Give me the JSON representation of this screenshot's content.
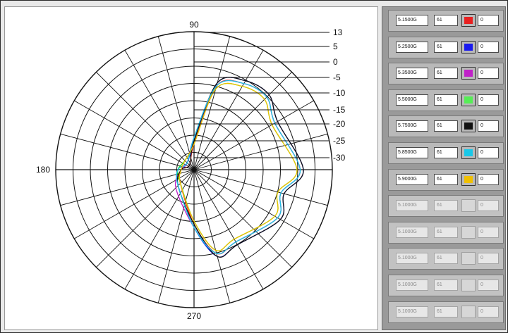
{
  "polar_plot": {
    "angle_labels": {
      "top": "90",
      "left": "180",
      "bottom": "270"
    },
    "db_labels": [
      "13",
      "5",
      "0",
      "-5",
      "-10",
      "-15",
      "-20",
      "-25",
      "-30"
    ],
    "colors": {
      "grid": "#111111"
    }
  },
  "chart_data": {
    "type": "polar",
    "angle_ticks": [
      "90",
      "180",
      "270"
    ],
    "radial_ticks": [
      "13",
      "5",
      "0",
      "-5",
      "-10",
      "-15",
      "-20",
      "-25",
      "-30"
    ],
    "series": [
      {
        "color": "#e82020",
        "values": {
          "0": 3,
          "30": -1,
          "45": 2,
          "60": 1,
          "75": -3,
          "90": -22,
          "135": -28,
          "180": -26,
          "225": -24,
          "270": -13,
          "285": -3,
          "300": -4,
          "330": 0,
          "345": -2
        }
      },
      {
        "color": "#1a1aee",
        "values": {
          "0": 4,
          "30": 0,
          "45": 3,
          "60": 2,
          "75": -2,
          "90": -21,
          "135": -27,
          "180": -25,
          "225": -23,
          "270": -12,
          "285": -2,
          "300": -3,
          "330": 1,
          "345": -1
        }
      },
      {
        "color": "#c020c8",
        "values": {
          "0": 3,
          "30": -1,
          "45": 2,
          "60": 1,
          "75": -3,
          "90": -20,
          "135": -27,
          "180": -26,
          "225": -22,
          "270": -12,
          "285": -3,
          "300": -4,
          "330": 0,
          "345": -2
        }
      },
      {
        "color": "#22dd22",
        "values": {
          "0": 2,
          "30": -2,
          "45": 1,
          "60": 0,
          "75": -4,
          "90": -22,
          "135": -26,
          "180": -25,
          "225": -24,
          "270": -14,
          "285": -4,
          "300": -5,
          "330": -1,
          "345": -3
        }
      },
      {
        "color": "#111111",
        "values": {
          "0": 4,
          "30": 0,
          "45": 3,
          "60": 2,
          "75": -2,
          "90": -21,
          "135": -28,
          "180": -26,
          "225": -23,
          "270": -13,
          "285": -2,
          "300": -3,
          "330": 1,
          "345": -1
        }
      },
      {
        "color": "#18c8e8",
        "values": {
          "0": 3,
          "30": -1,
          "45": 2,
          "60": 1,
          "75": -3,
          "90": -20,
          "135": -27,
          "180": -25,
          "225": -23,
          "270": -12,
          "285": -3,
          "300": -4,
          "330": 0,
          "345": -2
        }
      },
      {
        "color": "#f0c000",
        "values": {
          "0": 2,
          "30": -2,
          "45": 1,
          "60": 0,
          "75": -4,
          "90": -22,
          "135": -26,
          "180": -26,
          "225": -24,
          "270": -14,
          "285": -4,
          "300": -5,
          "330": -1,
          "345": -3
        }
      }
    ]
  },
  "traces": [
    {
      "freq": "5.1500G",
      "val": "61",
      "color": "#e82020",
      "offset": "0",
      "active": true
    },
    {
      "freq": "5.2500G",
      "val": "61",
      "color": "#1a1aee",
      "offset": "0",
      "active": true
    },
    {
      "freq": "5.3500G",
      "val": "61",
      "color": "#c020c8",
      "offset": "0",
      "active": true
    },
    {
      "freq": "5.5000G",
      "val": "61",
      "color": "#55ee55",
      "offset": "0",
      "active": true
    },
    {
      "freq": "5.7500G",
      "val": "61",
      "color": "#111111",
      "offset": "0",
      "active": true
    },
    {
      "freq": "5.8500G",
      "val": "61",
      "color": "#18c8e8",
      "offset": "0",
      "active": true
    },
    {
      "freq": "5.9000G",
      "val": "61",
      "color": "#f0c000",
      "offset": "0",
      "active": true
    },
    {
      "freq": "5.1000G",
      "val": "61",
      "color": "#d7d7d7",
      "offset": "0",
      "active": false
    },
    {
      "freq": "5.1000G",
      "val": "61",
      "color": "#d7d7d7",
      "offset": "0",
      "active": false
    },
    {
      "freq": "5.1000G",
      "val": "61",
      "color": "#d7d7d7",
      "offset": "0",
      "active": false
    },
    {
      "freq": "5.1000G",
      "val": "61",
      "color": "#d7d7d7",
      "offset": "0",
      "active": false
    },
    {
      "freq": "5.1000G",
      "val": "61",
      "color": "#d7d7d7",
      "offset": "0",
      "active": false
    }
  ]
}
